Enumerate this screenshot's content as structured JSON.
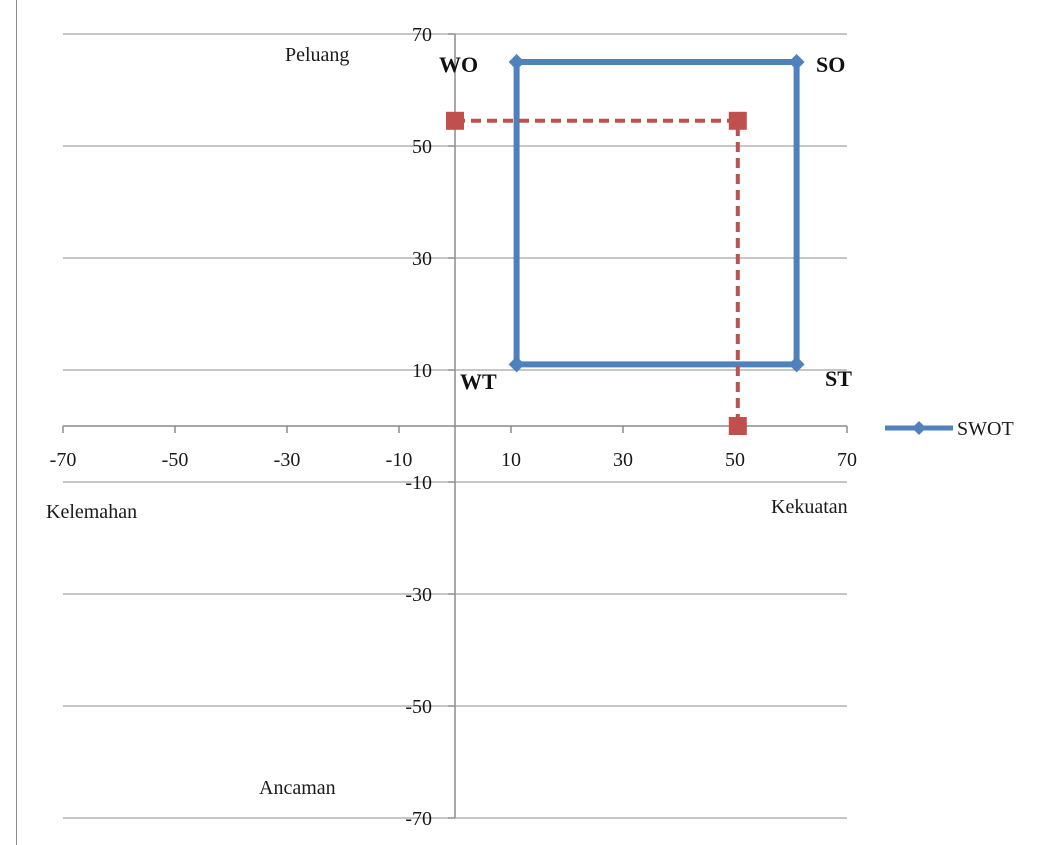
{
  "chart_data": {
    "type": "scatter",
    "title": "",
    "axis_labels": {
      "positive_y": "Peluang",
      "negative_y": "Ancaman",
      "negative_x": "Kelemahan",
      "positive_x": "Kekuatan"
    },
    "xlim": [
      -70,
      70
    ],
    "ylim": [
      -70,
      70
    ],
    "x_ticks": [
      -70,
      -50,
      -30,
      -10,
      10,
      30,
      50,
      70
    ],
    "y_ticks": [
      -70,
      -50,
      -30,
      -10,
      10,
      30,
      50,
      70
    ],
    "x_tick_labels": [
      "-70",
      "-50",
      "-30",
      "-10",
      "10",
      "30",
      "50",
      "70"
    ],
    "y_tick_labels": [
      "-70",
      "-50",
      "-30",
      "-10",
      "10",
      "30",
      "50",
      "70"
    ],
    "grid": "horizontal",
    "legend_position": "right",
    "series": [
      {
        "name": "SWOT",
        "color": "#4f81bd",
        "marker": "diamond",
        "line": "solid",
        "closed": true,
        "points": [
          {
            "x": 11,
            "y": 65
          },
          {
            "x": 61,
            "y": 65
          },
          {
            "x": 61,
            "y": 11
          },
          {
            "x": 11,
            "y": 11
          }
        ]
      },
      {
        "color": "#c0504d",
        "marker": "square",
        "line": "dashed",
        "points": [
          {
            "x": 0,
            "y": 54.5
          },
          {
            "x": 50.5,
            "y": 54.5
          },
          {
            "x": 50.5,
            "y": 0
          }
        ]
      }
    ],
    "quadrant_labels": [
      {
        "text": "WO",
        "x": 11,
        "y": 65
      },
      {
        "text": "SO",
        "x": 61,
        "y": 65
      },
      {
        "text": "WT",
        "x": 11,
        "y": 11
      },
      {
        "text": "ST",
        "x": 61,
        "y": 11
      }
    ]
  }
}
